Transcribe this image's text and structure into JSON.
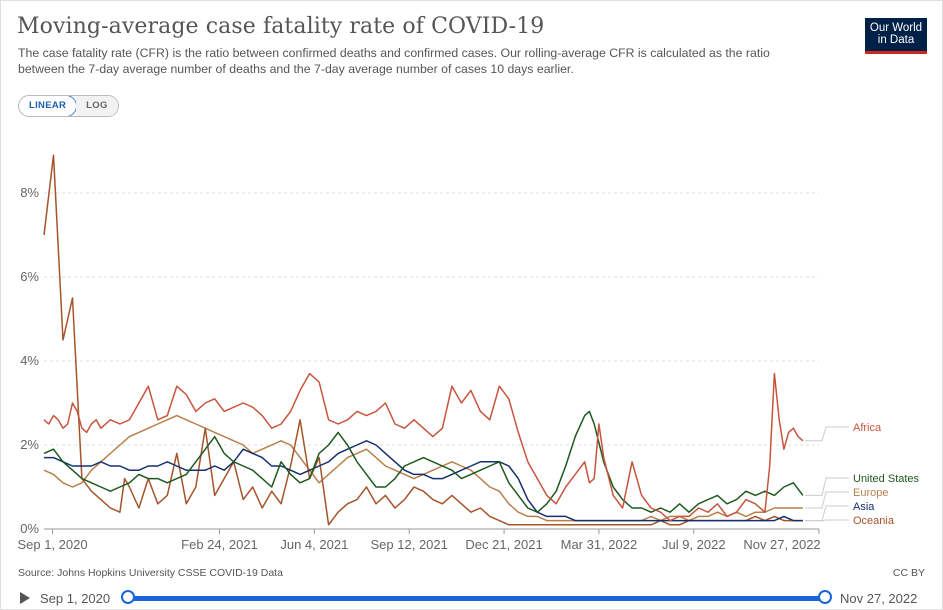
{
  "title": "Moving-average case fatality rate of COVID-19",
  "subtitle": "The case fatality rate (CFR) is the ratio between confirmed deaths and confirmed cases. Our rolling-average CFR is calculated as the ratio between the 7-day average number of deaths and the 7-day average number of cases 10 days earlier.",
  "logo": {
    "line1": "Our World",
    "line2": "in Data"
  },
  "scale_toggle": {
    "linear": "LINEAR",
    "log": "LOG"
  },
  "source": "Source: Johns Hopkins University CSSE COVID-19 Data",
  "license": "CC BY",
  "timeline": {
    "start": "Sep 1, 2020",
    "end": "Nov 27, 2022",
    "start_fraction": 0,
    "end_fraction": 1
  },
  "colors": {
    "Africa": "#c8543e",
    "United States": "#1e5a1e",
    "Europe": "#b87f4a",
    "Asia": "#14306e",
    "Oceania": "#a5542a"
  },
  "chart_data": {
    "type": "line",
    "title": "Moving-average case fatality rate of COVID-19",
    "xlabel": "",
    "ylabel": "",
    "xlim": [
      0,
      817
    ],
    "ylim": [
      0,
      9.5
    ],
    "y_unit": "%",
    "x_unit": "days since Aug 23, 2020",
    "x_ticks": [
      {
        "day": 9,
        "label": "Sep 1, 2020"
      },
      {
        "day": 185,
        "label": "Feb 24, 2021"
      },
      {
        "day": 285,
        "label": "Jun 4, 2021"
      },
      {
        "day": 385,
        "label": "Sep 12, 2021"
      },
      {
        "day": 485,
        "label": "Dec 21, 2021"
      },
      {
        "day": 585,
        "label": "Mar 31, 2022"
      },
      {
        "day": 685,
        "label": "Jul 9, 2022"
      },
      {
        "day": 826,
        "label": "Nov 27, 2022"
      }
    ],
    "y_ticks": [
      {
        "value": 0,
        "label": "0%"
      },
      {
        "value": 2,
        "label": "2%"
      },
      {
        "value": 4,
        "label": "4%"
      },
      {
        "value": 6,
        "label": "6%"
      },
      {
        "value": 8,
        "label": "8%"
      }
    ],
    "grid": "horizontal dashed",
    "series": [
      {
        "name": "Africa",
        "x": [
          0,
          5,
          10,
          15,
          20,
          25,
          30,
          35,
          40,
          45,
          50,
          55,
          60,
          70,
          80,
          90,
          100,
          110,
          120,
          130,
          140,
          150,
          160,
          170,
          180,
          190,
          200,
          210,
          220,
          230,
          240,
          250,
          260,
          270,
          280,
          290,
          300,
          310,
          320,
          330,
          340,
          350,
          360,
          370,
          380,
          390,
          400,
          410,
          420,
          430,
          440,
          450,
          460,
          470,
          480,
          490,
          500,
          510,
          520,
          530,
          540,
          550,
          560,
          570,
          575,
          580,
          585,
          590,
          600,
          610,
          620,
          630,
          640,
          650,
          660,
          670,
          680,
          690,
          700,
          710,
          720,
          730,
          740,
          750,
          760,
          765,
          770,
          775,
          780,
          785,
          790,
          795,
          800
        ],
        "values": [
          2.6,
          2.5,
          2.7,
          2.6,
          2.4,
          2.5,
          3.0,
          2.8,
          2.4,
          2.3,
          2.5,
          2.6,
          2.4,
          2.6,
          2.5,
          2.6,
          3.0,
          3.4,
          2.6,
          2.7,
          3.4,
          3.2,
          2.8,
          3.0,
          3.1,
          2.8,
          2.9,
          3.0,
          2.9,
          2.7,
          2.4,
          2.5,
          2.8,
          3.3,
          3.7,
          3.5,
          2.6,
          2.5,
          2.6,
          2.8,
          2.7,
          2.8,
          3.0,
          2.5,
          2.4,
          2.6,
          2.4,
          2.2,
          2.4,
          3.4,
          3.0,
          3.3,
          2.8,
          2.6,
          3.4,
          3.1,
          2.3,
          1.6,
          1.2,
          0.8,
          0.6,
          1.0,
          1.3,
          1.6,
          1.1,
          1.2,
          2.5,
          1.7,
          0.8,
          0.5,
          1.6,
          0.8,
          0.5,
          0.4,
          0.2,
          0.3,
          0.3,
          0.5,
          0.4,
          0.6,
          0.3,
          0.4,
          0.7,
          0.6,
          0.4,
          1.5,
          3.7,
          2.6,
          1.9,
          2.3,
          2.4,
          2.2,
          2.1
        ]
      },
      {
        "name": "United States",
        "x": [
          0,
          10,
          20,
          30,
          40,
          50,
          60,
          70,
          80,
          90,
          100,
          110,
          120,
          130,
          140,
          150,
          160,
          170,
          180,
          190,
          200,
          210,
          220,
          230,
          240,
          250,
          260,
          270,
          280,
          290,
          300,
          310,
          320,
          330,
          340,
          350,
          360,
          370,
          380,
          390,
          400,
          410,
          420,
          430,
          440,
          450,
          460,
          470,
          480,
          490,
          500,
          510,
          520,
          530,
          540,
          550,
          560,
          570,
          575,
          580,
          590,
          600,
          610,
          620,
          630,
          640,
          650,
          660,
          670,
          680,
          690,
          700,
          710,
          720,
          730,
          740,
          750,
          760,
          770,
          780,
          790,
          800
        ],
        "values": [
          1.8,
          1.9,
          1.6,
          1.4,
          1.2,
          1.1,
          1.0,
          0.9,
          1.0,
          1.1,
          1.3,
          1.2,
          1.2,
          1.1,
          1.2,
          1.3,
          1.6,
          1.9,
          2.2,
          1.8,
          1.6,
          1.5,
          1.4,
          1.2,
          1.0,
          1.6,
          1.3,
          1.1,
          1.2,
          1.8,
          2.0,
          2.3,
          2.0,
          1.6,
          1.3,
          1.0,
          1.0,
          1.2,
          1.5,
          1.6,
          1.7,
          1.6,
          1.5,
          1.4,
          1.2,
          1.3,
          1.4,
          1.5,
          1.6,
          1.1,
          0.8,
          0.5,
          0.4,
          0.6,
          0.9,
          1.5,
          2.2,
          2.7,
          2.8,
          2.5,
          1.6,
          1.0,
          0.7,
          0.5,
          0.5,
          0.4,
          0.5,
          0.4,
          0.6,
          0.4,
          0.6,
          0.7,
          0.8,
          0.6,
          0.7,
          0.9,
          0.8,
          0.9,
          0.8,
          1.0,
          1.1,
          0.8
        ]
      },
      {
        "name": "Europe",
        "x": [
          0,
          10,
          20,
          30,
          40,
          50,
          60,
          70,
          80,
          90,
          100,
          110,
          120,
          130,
          140,
          150,
          160,
          170,
          180,
          190,
          200,
          210,
          220,
          230,
          240,
          250,
          260,
          270,
          280,
          290,
          300,
          310,
          320,
          330,
          340,
          350,
          360,
          370,
          380,
          390,
          400,
          410,
          420,
          430,
          440,
          450,
          460,
          470,
          480,
          490,
          500,
          510,
          520,
          530,
          540,
          550,
          560,
          570,
          580,
          590,
          600,
          610,
          620,
          630,
          640,
          650,
          660,
          670,
          680,
          690,
          700,
          710,
          720,
          730,
          740,
          750,
          760,
          770,
          780,
          790,
          800
        ],
        "values": [
          1.4,
          1.3,
          1.1,
          1.0,
          1.1,
          1.4,
          1.6,
          1.8,
          2.0,
          2.2,
          2.3,
          2.4,
          2.5,
          2.6,
          2.7,
          2.6,
          2.5,
          2.4,
          2.3,
          2.2,
          2.1,
          2.0,
          1.8,
          1.9,
          2.0,
          2.1,
          2.0,
          1.7,
          1.4,
          1.1,
          1.3,
          1.5,
          1.7,
          1.8,
          1.9,
          1.7,
          1.5,
          1.4,
          1.3,
          1.2,
          1.3,
          1.4,
          1.5,
          1.6,
          1.5,
          1.4,
          1.2,
          1.0,
          0.9,
          0.6,
          0.4,
          0.3,
          0.3,
          0.2,
          0.2,
          0.2,
          0.2,
          0.2,
          0.2,
          0.2,
          0.2,
          0.2,
          0.2,
          0.2,
          0.3,
          0.2,
          0.3,
          0.3,
          0.2,
          0.3,
          0.3,
          0.4,
          0.3,
          0.4,
          0.3,
          0.4,
          0.4,
          0.5,
          0.5,
          0.5,
          0.5
        ]
      },
      {
        "name": "Asia",
        "x": [
          0,
          10,
          20,
          30,
          40,
          50,
          60,
          70,
          80,
          90,
          100,
          110,
          120,
          130,
          140,
          150,
          160,
          170,
          180,
          190,
          200,
          210,
          220,
          230,
          240,
          250,
          260,
          270,
          280,
          290,
          300,
          310,
          320,
          330,
          340,
          350,
          360,
          370,
          380,
          390,
          400,
          410,
          420,
          430,
          440,
          450,
          460,
          470,
          480,
          490,
          500,
          510,
          520,
          530,
          540,
          550,
          560,
          570,
          580,
          590,
          600,
          610,
          620,
          630,
          640,
          650,
          660,
          670,
          680,
          690,
          700,
          710,
          720,
          730,
          740,
          750,
          760,
          770,
          780,
          790,
          800
        ],
        "values": [
          1.7,
          1.7,
          1.6,
          1.5,
          1.5,
          1.5,
          1.6,
          1.5,
          1.5,
          1.4,
          1.4,
          1.5,
          1.5,
          1.6,
          1.5,
          1.4,
          1.4,
          1.4,
          1.5,
          1.4,
          1.6,
          1.9,
          1.8,
          1.7,
          1.5,
          1.5,
          1.4,
          1.3,
          1.4,
          1.5,
          1.6,
          1.8,
          1.9,
          2.0,
          2.1,
          2.0,
          1.8,
          1.6,
          1.4,
          1.3,
          1.3,
          1.2,
          1.2,
          1.3,
          1.4,
          1.5,
          1.6,
          1.6,
          1.6,
          1.5,
          1.2,
          0.7,
          0.4,
          0.3,
          0.3,
          0.3,
          0.2,
          0.2,
          0.2,
          0.2,
          0.2,
          0.2,
          0.2,
          0.2,
          0.2,
          0.2,
          0.2,
          0.2,
          0.2,
          0.2,
          0.2,
          0.2,
          0.2,
          0.2,
          0.2,
          0.2,
          0.2,
          0.2,
          0.3,
          0.2,
          0.2
        ]
      },
      {
        "name": "Oceania",
        "x": [
          0,
          10,
          20,
          30,
          40,
          50,
          60,
          70,
          80,
          85,
          90,
          100,
          110,
          120,
          130,
          140,
          150,
          160,
          170,
          180,
          190,
          200,
          210,
          220,
          230,
          240,
          250,
          260,
          270,
          280,
          290,
          300,
          310,
          320,
          330,
          340,
          350,
          360,
          370,
          380,
          390,
          400,
          410,
          420,
          430,
          440,
          450,
          460,
          470,
          480,
          490,
          500,
          510,
          520,
          530,
          540,
          550,
          560,
          570,
          580,
          590,
          600,
          610,
          620,
          630,
          640,
          650,
          660,
          670,
          680,
          690,
          700,
          710,
          720,
          730,
          740,
          750,
          760,
          770,
          780,
          790,
          800
        ],
        "values": [
          7.0,
          8.9,
          4.5,
          5.5,
          1.2,
          0.9,
          0.7,
          0.5,
          0.4,
          1.2,
          1.0,
          0.5,
          1.2,
          0.6,
          0.8,
          1.8,
          0.6,
          1.0,
          2.4,
          0.8,
          1.2,
          1.6,
          0.7,
          1.0,
          0.5,
          0.9,
          0.6,
          1.5,
          2.6,
          1.2,
          1.7,
          0.1,
          0.4,
          0.6,
          0.7,
          1.0,
          0.6,
          0.8,
          0.5,
          0.7,
          1.0,
          0.9,
          0.7,
          0.6,
          0.8,
          0.6,
          0.4,
          0.5,
          0.3,
          0.2,
          0.1,
          0.1,
          0.1,
          0.1,
          0.1,
          0.1,
          0.1,
          0.1,
          0.1,
          0.1,
          0.1,
          0.1,
          0.1,
          0.1,
          0.1,
          0.1,
          0.2,
          0.1,
          0.1,
          0.2,
          0.2,
          0.2,
          0.2,
          0.2,
          0.2,
          0.2,
          0.3,
          0.2,
          0.3,
          0.2,
          0.2,
          0.2
        ]
      }
    ]
  }
}
